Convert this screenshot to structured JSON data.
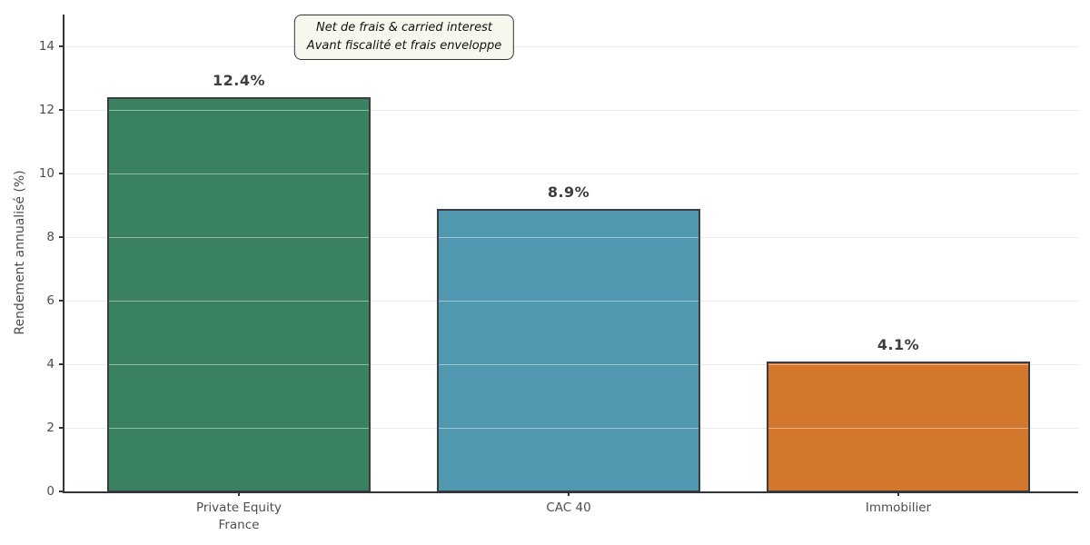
{
  "chart_data": {
    "type": "bar",
    "title": "",
    "categories": [
      "Private Equity\nFrance",
      "CAC 40",
      "Immobilier"
    ],
    "values": [
      12.4,
      8.9,
      4.1
    ],
    "value_labels": [
      "12.4%",
      "8.9%",
      "4.1%"
    ],
    "bar_colors": [
      "#3a8161",
      "#4f98b0",
      "#d2772c"
    ],
    "bar_edge_color": "#3a3d42",
    "xlabel": "",
    "ylabel": "Rendement annualisé (%)",
    "ylim": [
      0,
      15
    ],
    "yticks": [
      0,
      2,
      4,
      6,
      8,
      10,
      12,
      14
    ],
    "ytick_labels": [
      "0",
      "2",
      "4",
      "6",
      "8",
      "10",
      "12",
      "14"
    ],
    "grid": "horizontal",
    "gridline_color": "#e9e9e6",
    "legend": null,
    "annotation": {
      "lines": [
        "Net de frais & carried interest",
        "Avant fiscalité et frais enveloppe"
      ],
      "background": "#f8f7ee",
      "border_color": "#333333"
    },
    "text_color": "#4d4d4d",
    "value_label_color": "#3d3d3d"
  }
}
